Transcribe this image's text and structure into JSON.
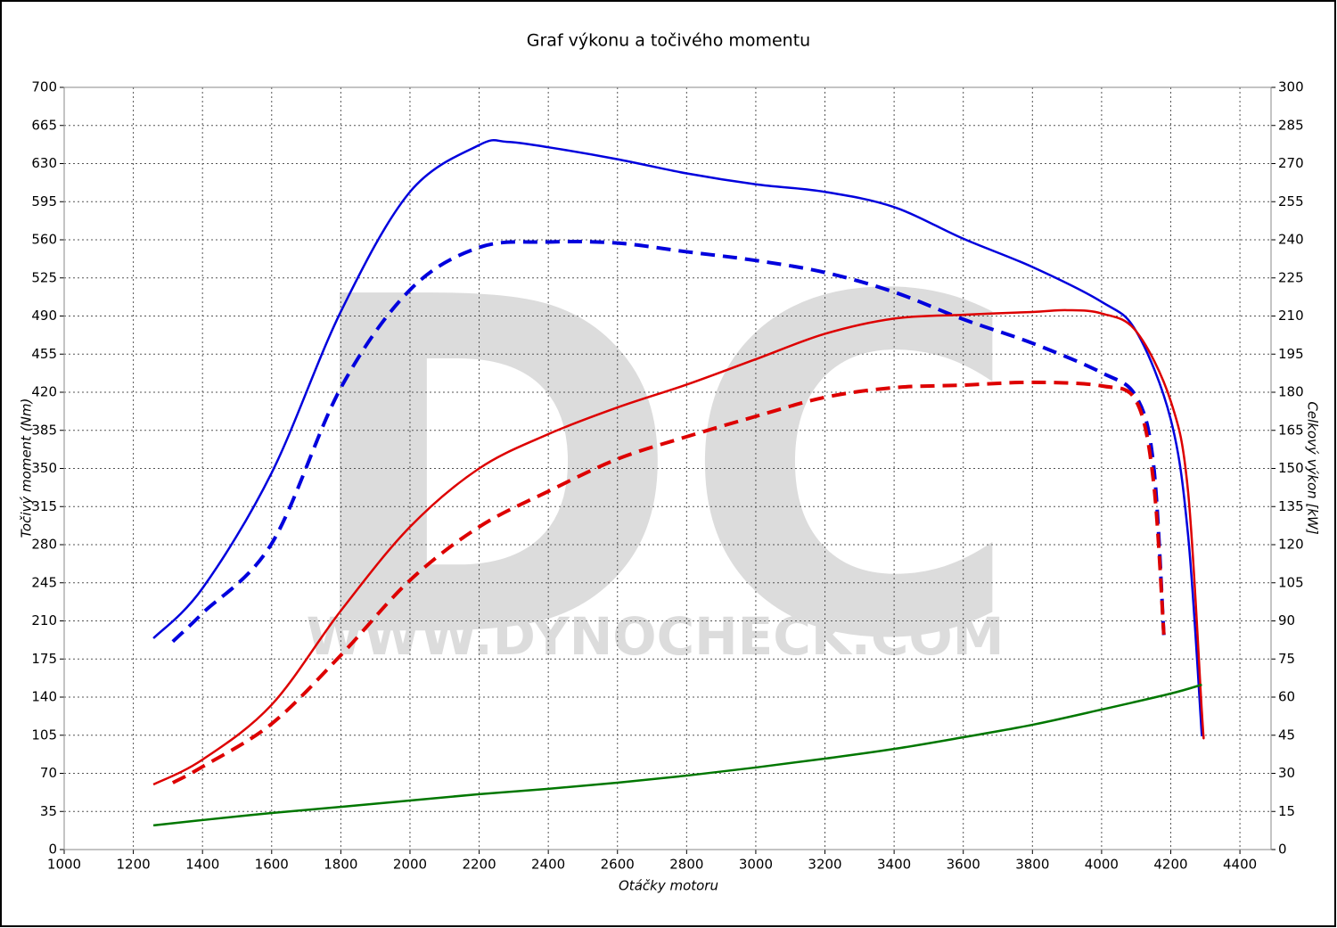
{
  "chart_data": {
    "type": "line",
    "title": "Graf výkonu a točivého momentu",
    "x_label": "Otáčky motoru",
    "y_label": "Točivý moment (Nm)",
    "y2_label": "Celkový výkon [kW]",
    "watermark": "DC",
    "watermark_url": "WWW.DYNOCHECK.COM",
    "xlim": [
      1000,
      4490
    ],
    "ylim": [
      0,
      700
    ],
    "y2lim": [
      0,
      300
    ],
    "xticks": [
      1000,
      1200,
      1400,
      1600,
      1800,
      2000,
      2200,
      2400,
      2600,
      2800,
      3000,
      3200,
      3400,
      3600,
      3800,
      4000,
      4200,
      4400
    ],
    "yticks": [
      0,
      35,
      70,
      105,
      140,
      175,
      210,
      245,
      280,
      315,
      350,
      385,
      420,
      455,
      490,
      525,
      560,
      595,
      630,
      665,
      700
    ],
    "y2ticks": [
      0,
      15,
      30,
      45,
      60,
      75,
      90,
      105,
      120,
      135,
      150,
      165,
      180,
      195,
      210,
      225,
      240,
      255,
      270,
      285,
      300
    ],
    "grid": true,
    "series": [
      {
        "color": "#0000dd",
        "dash": false,
        "axis": "y",
        "x": [
          1258,
          1400,
          1600,
          1800,
          2000,
          2200,
          2280,
          2400,
          2600,
          2800,
          3000,
          3200,
          3400,
          3600,
          3800,
          4000,
          4100,
          4200,
          4250,
          4290
        ],
        "values": [
          194,
          240,
          346,
          494,
          604,
          647,
          650,
          645,
          634,
          621,
          611,
          604,
          590,
          561,
          535,
          503,
          476,
          395,
          289,
          104
        ]
      },
      {
        "color": "#0000dd",
        "dash": true,
        "axis": "y",
        "x": [
          1314,
          1400,
          1600,
          1800,
          2000,
          2200,
          2400,
          2600,
          2800,
          3000,
          3200,
          3400,
          3600,
          3800,
          4000,
          4100,
          4150,
          4180
        ],
        "values": [
          191,
          217,
          281,
          424,
          514,
          553,
          558,
          557,
          549,
          541,
          530,
          512,
          487,
          465,
          438,
          416,
          354,
          197
        ]
      },
      {
        "color": "#dd0000",
        "dash": false,
        "axis": "y2",
        "x": [
          1258,
          1400,
          1600,
          1800,
          2000,
          2200,
          2400,
          2600,
          2800,
          3000,
          3200,
          3400,
          3600,
          3800,
          3900,
          4000,
          4100,
          4200,
          4250,
          4290,
          4295
        ],
        "values": [
          25.6,
          35.4,
          57,
          94,
          127,
          150,
          163.5,
          174,
          183,
          193,
          203,
          209,
          210.5,
          211.6,
          212.3,
          211,
          204,
          176.5,
          141,
          54,
          44.5
        ]
      },
      {
        "color": "#dd0000",
        "dash": true,
        "axis": "y2",
        "x": [
          1314,
          1400,
          1600,
          1800,
          2000,
          2200,
          2400,
          2600,
          2800,
          3000,
          3200,
          3400,
          3600,
          3800,
          4000,
          4100,
          4150,
          4180
        ],
        "values": [
          26.3,
          32.6,
          49.5,
          76.5,
          106,
          127,
          141,
          153.7,
          162.5,
          170.5,
          178,
          181.8,
          182.8,
          183.9,
          182.5,
          176.5,
          145,
          84.6
        ]
      },
      {
        "color": "#007700",
        "dash": false,
        "axis": "y2",
        "x": [
          1258,
          1400,
          1600,
          1800,
          2000,
          2200,
          2400,
          2600,
          2800,
          3000,
          3200,
          3400,
          3600,
          3800,
          4000,
          4200,
          4290
        ],
        "values": [
          9.5,
          11.6,
          14.4,
          16.8,
          19.3,
          21.8,
          23.9,
          26.3,
          29.1,
          32.3,
          35.8,
          39.6,
          44.2,
          49.1,
          55.1,
          61.4,
          64.9
        ]
      }
    ]
  }
}
